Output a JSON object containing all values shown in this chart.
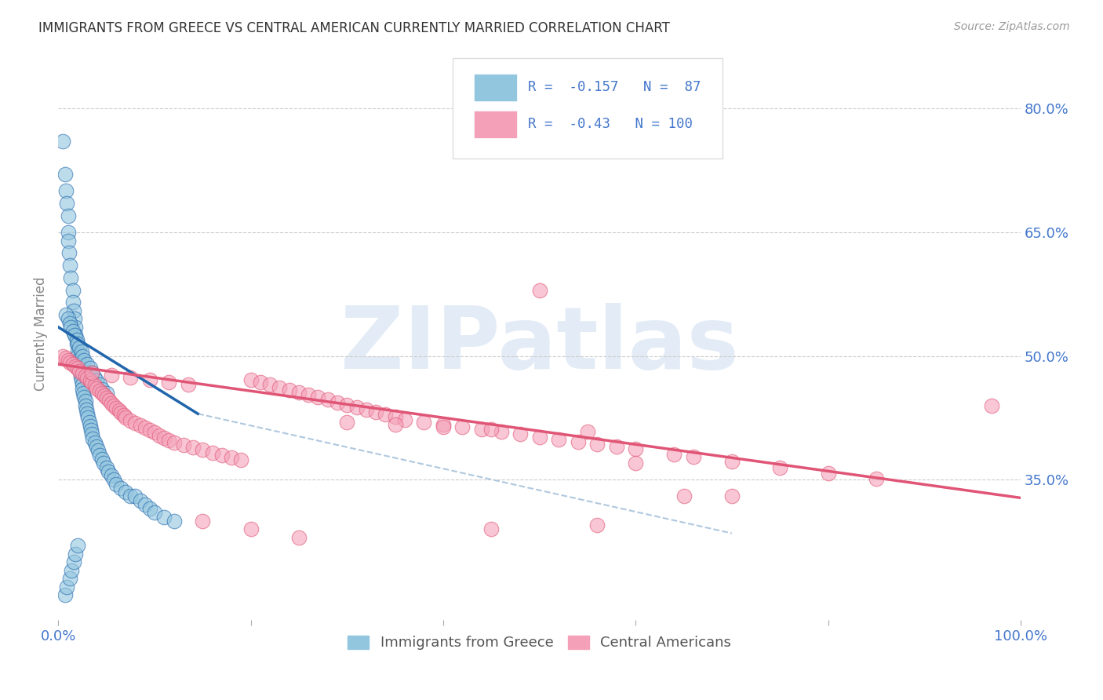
{
  "title": "IMMIGRANTS FROM GREECE VS CENTRAL AMERICAN CURRENTLY MARRIED CORRELATION CHART",
  "source": "Source: ZipAtlas.com",
  "ylabel": "Currently Married",
  "watermark": "ZIPatlas",
  "xlim": [
    0.0,
    1.0
  ],
  "ylim": [
    0.18,
    0.875
  ],
  "yticks": [
    0.35,
    0.5,
    0.65,
    0.8
  ],
  "ytick_labels": [
    "35.0%",
    "50.0%",
    "65.0%",
    "80.0%"
  ],
  "xtick_positions": [
    0.0,
    0.2,
    0.4,
    0.6,
    0.8,
    1.0
  ],
  "xtick_labels": [
    "0.0%",
    "",
    "",
    "",
    "",
    "100.0%"
  ],
  "blue_R": -0.157,
  "blue_N": 87,
  "pink_R": -0.43,
  "pink_N": 100,
  "blue_color": "#92c5de",
  "pink_color": "#f4a0b8",
  "blue_line_color": "#2166ac",
  "pink_line_color": "#e05575",
  "dashed_line_color": "#b0c8df",
  "tick_color": "#4477cc",
  "grid_color": "#cccccc",
  "background_color": "#ffffff",
  "legend_box_blue": "#92c5de",
  "legend_box_pink": "#f4a0b8",
  "blue_scatter_x": [
    0.005,
    0.007,
    0.008,
    0.009,
    0.01,
    0.01,
    0.01,
    0.011,
    0.012,
    0.013,
    0.015,
    0.015,
    0.016,
    0.017,
    0.018,
    0.018,
    0.019,
    0.02,
    0.02,
    0.021,
    0.022,
    0.022,
    0.023,
    0.023,
    0.024,
    0.025,
    0.025,
    0.026,
    0.027,
    0.028,
    0.028,
    0.029,
    0.03,
    0.031,
    0.032,
    0.033,
    0.034,
    0.035,
    0.036,
    0.038,
    0.04,
    0.041,
    0.043,
    0.045,
    0.047,
    0.05,
    0.052,
    0.055,
    0.058,
    0.06,
    0.065,
    0.07,
    0.075,
    0.08,
    0.085,
    0.09,
    0.095,
    0.1,
    0.11,
    0.12,
    0.008,
    0.01,
    0.012,
    0.013,
    0.015,
    0.017,
    0.019,
    0.02,
    0.022,
    0.024,
    0.025,
    0.027,
    0.03,
    0.033,
    0.035,
    0.037,
    0.04,
    0.043,
    0.045,
    0.05,
    0.007,
    0.009,
    0.012,
    0.014,
    0.016,
    0.018,
    0.02
  ],
  "blue_scatter_y": [
    0.76,
    0.72,
    0.7,
    0.685,
    0.67,
    0.65,
    0.64,
    0.625,
    0.61,
    0.595,
    0.58,
    0.565,
    0.555,
    0.545,
    0.535,
    0.525,
    0.515,
    0.505,
    0.5,
    0.495,
    0.49,
    0.485,
    0.48,
    0.475,
    0.47,
    0.465,
    0.46,
    0.455,
    0.45,
    0.445,
    0.44,
    0.435,
    0.43,
    0.425,
    0.42,
    0.415,
    0.41,
    0.405,
    0.4,
    0.395,
    0.39,
    0.385,
    0.38,
    0.375,
    0.37,
    0.365,
    0.36,
    0.355,
    0.35,
    0.345,
    0.34,
    0.335,
    0.33,
    0.33,
    0.325,
    0.32,
    0.315,
    0.31,
    0.305,
    0.3,
    0.55,
    0.545,
    0.54,
    0.535,
    0.53,
    0.525,
    0.52,
    0.515,
    0.51,
    0.505,
    0.5,
    0.495,
    0.49,
    0.485,
    0.48,
    0.475,
    0.47,
    0.465,
    0.46,
    0.455,
    0.21,
    0.22,
    0.23,
    0.24,
    0.25,
    0.26,
    0.27
  ],
  "pink_scatter_x": [
    0.005,
    0.008,
    0.01,
    0.012,
    0.015,
    0.018,
    0.02,
    0.022,
    0.025,
    0.028,
    0.03,
    0.033,
    0.035,
    0.038,
    0.04,
    0.043,
    0.045,
    0.048,
    0.05,
    0.053,
    0.055,
    0.058,
    0.06,
    0.063,
    0.065,
    0.068,
    0.07,
    0.075,
    0.08,
    0.085,
    0.09,
    0.095,
    0.1,
    0.105,
    0.11,
    0.115,
    0.12,
    0.13,
    0.14,
    0.15,
    0.16,
    0.17,
    0.18,
    0.19,
    0.2,
    0.21,
    0.22,
    0.23,
    0.24,
    0.25,
    0.26,
    0.27,
    0.28,
    0.29,
    0.3,
    0.31,
    0.32,
    0.33,
    0.34,
    0.35,
    0.36,
    0.38,
    0.4,
    0.42,
    0.44,
    0.46,
    0.48,
    0.5,
    0.52,
    0.54,
    0.56,
    0.58,
    0.6,
    0.64,
    0.66,
    0.7,
    0.75,
    0.8,
    0.85,
    0.97,
    0.035,
    0.055,
    0.075,
    0.095,
    0.115,
    0.135,
    0.3,
    0.35,
    0.4,
    0.45,
    0.5,
    0.55,
    0.6,
    0.65,
    0.7,
    0.15,
    0.2,
    0.25,
    0.56,
    0.45
  ],
  "pink_scatter_y": [
    0.5,
    0.498,
    0.495,
    0.492,
    0.49,
    0.487,
    0.485,
    0.482,
    0.479,
    0.476,
    0.473,
    0.47,
    0.467,
    0.464,
    0.461,
    0.458,
    0.455,
    0.452,
    0.449,
    0.446,
    0.443,
    0.44,
    0.437,
    0.434,
    0.431,
    0.428,
    0.425,
    0.422,
    0.419,
    0.416,
    0.413,
    0.41,
    0.407,
    0.404,
    0.401,
    0.398,
    0.395,
    0.392,
    0.389,
    0.386,
    0.383,
    0.38,
    0.377,
    0.374,
    0.471,
    0.468,
    0.465,
    0.462,
    0.459,
    0.456,
    0.453,
    0.45,
    0.447,
    0.444,
    0.441,
    0.438,
    0.435,
    0.432,
    0.429,
    0.426,
    0.423,
    0.42,
    0.417,
    0.414,
    0.411,
    0.408,
    0.405,
    0.402,
    0.399,
    0.396,
    0.393,
    0.39,
    0.387,
    0.381,
    0.378,
    0.372,
    0.365,
    0.358,
    0.351,
    0.44,
    0.48,
    0.477,
    0.474,
    0.471,
    0.468,
    0.465,
    0.42,
    0.417,
    0.414,
    0.411,
    0.58,
    0.408,
    0.37,
    0.33,
    0.33,
    0.3,
    0.29,
    0.28,
    0.295,
    0.29
  ],
  "blue_line_x0": 0.0,
  "blue_line_y0": 0.535,
  "blue_line_x1": 0.145,
  "blue_line_y1": 0.43,
  "pink_line_x0": 0.0,
  "pink_line_y0": 0.49,
  "pink_line_x1": 1.0,
  "pink_line_y1": 0.328,
  "dashed_line_x0": 0.145,
  "dashed_line_y0": 0.43,
  "dashed_line_x1": 0.7,
  "dashed_line_y1": 0.285
}
